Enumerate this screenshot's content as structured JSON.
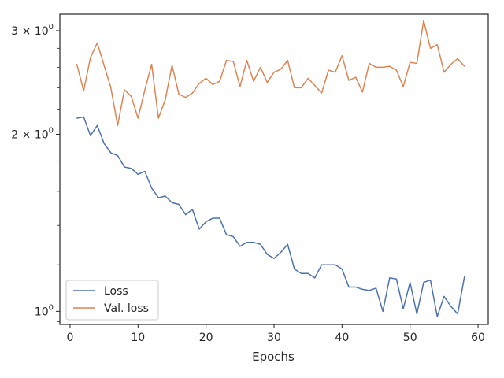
{
  "chart_data": {
    "type": "line",
    "title": "",
    "xlabel": "Epochs",
    "ylabel": "",
    "yscale": "log",
    "xlim": [
      -1.5,
      61.5
    ],
    "ylim": [
      0.95,
      3.2
    ],
    "x_ticks": [
      0,
      10,
      20,
      30,
      40,
      50,
      60
    ],
    "y_ticks": [
      {
        "value": 3,
        "label_base": "3 × 10",
        "label_exp": "0"
      },
      {
        "value": 2,
        "label_base": "2 × 10",
        "label_exp": "0"
      },
      {
        "value": 1,
        "label_base": "10",
        "label_exp": "0"
      }
    ],
    "legend": {
      "position": "lower-left"
    },
    "grid": false,
    "x": [
      1,
      2,
      3,
      4,
      5,
      6,
      7,
      8,
      9,
      10,
      11,
      12,
      13,
      14,
      15,
      16,
      17,
      18,
      19,
      20,
      21,
      22,
      23,
      24,
      25,
      26,
      27,
      28,
      29,
      30,
      31,
      32,
      33,
      34,
      35,
      36,
      37,
      38,
      39,
      40,
      41,
      42,
      43,
      44,
      45,
      46,
      47,
      48,
      49,
      50,
      51,
      52,
      53,
      54,
      55,
      56,
      57,
      58
    ],
    "series": [
      {
        "name": "Loss",
        "color": "#4c72b0",
        "values": [
          2.13,
          2.14,
          1.99,
          2.07,
          1.93,
          1.86,
          1.84,
          1.76,
          1.75,
          1.71,
          1.73,
          1.62,
          1.56,
          1.57,
          1.53,
          1.52,
          1.46,
          1.49,
          1.38,
          1.42,
          1.44,
          1.44,
          1.35,
          1.34,
          1.29,
          1.31,
          1.31,
          1.3,
          1.25,
          1.23,
          1.26,
          1.3,
          1.18,
          1.16,
          1.16,
          1.14,
          1.2,
          1.2,
          1.2,
          1.18,
          1.1,
          1.1,
          1.09,
          1.085,
          1.095,
          1.0,
          1.14,
          1.135,
          1.01,
          1.12,
          0.99,
          1.12,
          1.13,
          0.98,
          1.06,
          1.02,
          0.99,
          1.145
        ]
      },
      {
        "name": "Val. loss",
        "color": "#dd8452",
        "values": [
          2.63,
          2.37,
          2.7,
          2.86,
          2.62,
          2.4,
          2.07,
          2.38,
          2.32,
          2.13,
          2.38,
          2.63,
          2.13,
          2.29,
          2.62,
          2.34,
          2.31,
          2.35,
          2.44,
          2.49,
          2.43,
          2.46,
          2.67,
          2.66,
          2.41,
          2.67,
          2.46,
          2.6,
          2.45,
          2.55,
          2.58,
          2.67,
          2.4,
          2.4,
          2.49,
          2.42,
          2.35,
          2.57,
          2.55,
          2.72,
          2.47,
          2.5,
          2.36,
          2.64,
          2.6,
          2.6,
          2.61,
          2.57,
          2.41,
          2.65,
          2.64,
          3.12,
          2.8,
          2.84,
          2.55,
          2.63,
          2.69,
          2.61
        ]
      }
    ]
  }
}
